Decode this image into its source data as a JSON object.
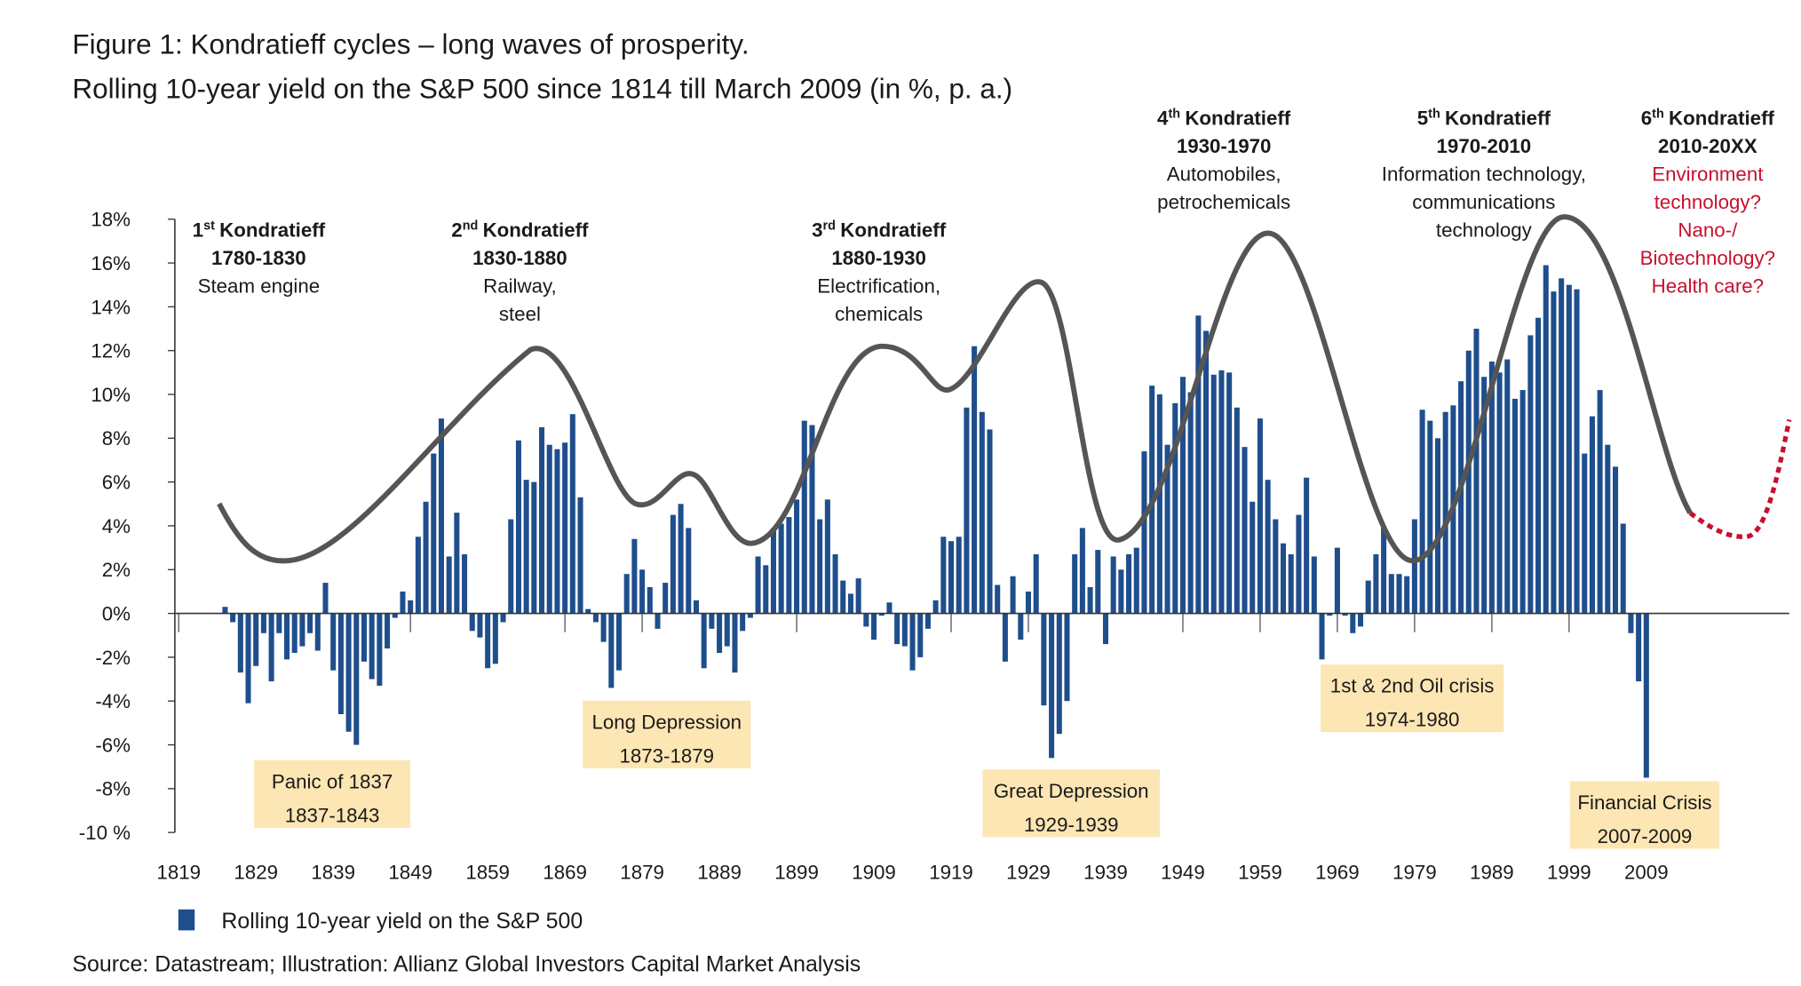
{
  "chart_data": {
    "type": "bar",
    "title": "Figure 1: Kondratieff cycles – long waves of prosperity.",
    "subtitle": "Rolling 10-year yield on the S&P 500 since 1814 till March 2009 (in %, p. a.)",
    "source": "Source: Datastream; Illustration: Allianz Global Investors Capital Market Analysis",
    "xlim": [
      1818.5,
      2027.5
    ],
    "xticks": [
      1819,
      1829,
      1839,
      1849,
      1859,
      1869,
      1879,
      1889,
      1899,
      1909,
      1919,
      1929,
      1939,
      1949,
      1959,
      1969,
      1979,
      1989,
      1999,
      2009
    ],
    "ylim": [
      -10,
      18
    ],
    "yticks": [
      {
        "value": -10,
        "label": "-10 %"
      },
      {
        "value": -8,
        "label": "-8%"
      },
      {
        "value": -6,
        "label": "-6%"
      },
      {
        "value": -4,
        "label": "-4%"
      },
      {
        "value": -2,
        "label": "-2%"
      },
      {
        "value": 0,
        "label": "0%"
      },
      {
        "value": 2,
        "label": "2%"
      },
      {
        "value": 4,
        "label": "4%"
      },
      {
        "value": 6,
        "label": "6%"
      },
      {
        "value": 8,
        "label": "8%"
      },
      {
        "value": 10,
        "label": "10%"
      },
      {
        "value": 12,
        "label": "12%"
      },
      {
        "value": 14,
        "label": "14%"
      },
      {
        "value": 16,
        "label": "16%"
      },
      {
        "value": 18,
        "label": "18%"
      }
    ],
    "x": [
      1825,
      1826,
      1827,
      1828,
      1829,
      1830,
      1831,
      1832,
      1833,
      1834,
      1835,
      1836,
      1837,
      1838,
      1839,
      1840,
      1841,
      1842,
      1843,
      1844,
      1845,
      1846,
      1847,
      1848,
      1849,
      1850,
      1851,
      1852,
      1853,
      1854,
      1855,
      1856,
      1857,
      1858,
      1859,
      1860,
      1861,
      1862,
      1863,
      1864,
      1865,
      1866,
      1867,
      1868,
      1869,
      1870,
      1871,
      1872,
      1873,
      1874,
      1875,
      1876,
      1877,
      1878,
      1879,
      1880,
      1881,
      1882,
      1883,
      1884,
      1885,
      1886,
      1887,
      1888,
      1889,
      1890,
      1891,
      1892,
      1893,
      1894,
      1895,
      1896,
      1897,
      1898,
      1899,
      1900,
      1901,
      1902,
      1903,
      1904,
      1905,
      1906,
      1907,
      1908,
      1909,
      1910,
      1911,
      1912,
      1913,
      1914,
      1915,
      1916,
      1917,
      1918,
      1919,
      1920,
      1921,
      1922,
      1923,
      1924,
      1925,
      1926,
      1927,
      1928,
      1929,
      1930,
      1931,
      1932,
      1933,
      1934,
      1935,
      1936,
      1937,
      1938,
      1939,
      1940,
      1941,
      1942,
      1943,
      1944,
      1945,
      1946,
      1947,
      1948,
      1949,
      1950,
      1951,
      1952,
      1953,
      1954,
      1955,
      1956,
      1957,
      1958,
      1959,
      1960,
      1961,
      1962,
      1963,
      1964,
      1965,
      1966,
      1967,
      1968,
      1969,
      1970,
      1971,
      1972,
      1973,
      1974,
      1975,
      1976,
      1977,
      1978,
      1979,
      1980,
      1981,
      1982,
      1983,
      1984,
      1985,
      1986,
      1987,
      1988,
      1989,
      1990,
      1991,
      1992,
      1993,
      1994,
      1995,
      1996,
      1997,
      1998,
      1999,
      2000,
      2001,
      2002,
      2003,
      2004,
      2005,
      2006,
      2007,
      2008,
      2009
    ],
    "series": [
      {
        "name": "Rolling 10-year yield on the S&P 500",
        "color": "#1f4e8c",
        "values": [
          0.3,
          -0.4,
          -2.7,
          -4.1,
          -2.4,
          -0.9,
          -3.1,
          -0.9,
          -2.1,
          -1.8,
          -1.5,
          -0.9,
          -1.7,
          1.4,
          -2.6,
          -4.6,
          -5.4,
          -6.0,
          -2.2,
          -3.0,
          -3.3,
          -1.6,
          -0.2,
          1.0,
          0.6,
          3.5,
          5.1,
          7.3,
          8.9,
          2.6,
          4.6,
          2.7,
          -0.8,
          -1.1,
          -2.5,
          -2.3,
          -0.4,
          4.3,
          7.9,
          6.1,
          6.0,
          8.5,
          7.7,
          7.5,
          7.8,
          9.1,
          5.3,
          0.2,
          -0.4,
          -1.3,
          -3.4,
          -2.6,
          1.8,
          3.4,
          2.0,
          1.2,
          -0.7,
          1.4,
          4.5,
          5.0,
          3.9,
          0.6,
          -2.5,
          -0.7,
          -1.8,
          -1.5,
          -2.7,
          -0.8,
          -0.2,
          2.6,
          2.2,
          3.9,
          4.1,
          4.4,
          5.2,
          8.8,
          8.6,
          4.3,
          5.2,
          2.7,
          1.5,
          0.9,
          1.6,
          -0.6,
          -1.2,
          -0.1,
          0.5,
          -1.4,
          -1.5,
          -2.6,
          -2.0,
          -0.7,
          0.6,
          3.5,
          3.3,
          3.5,
          9.4,
          12.2,
          9.2,
          8.4,
          1.3,
          -2.2,
          1.7,
          -1.2,
          1.0,
          2.7,
          -4.2,
          -6.6,
          -5.5,
          -4.0,
          2.7,
          3.9,
          1.2,
          2.9,
          -1.4,
          2.6,
          2.0,
          2.7,
          3.0,
          7.4,
          10.4,
          10.0,
          7.7,
          9.6,
          10.8,
          10.1,
          13.6,
          12.9,
          10.9,
          11.1,
          11.0,
          9.4,
          7.6,
          5.1,
          8.9,
          6.1,
          4.3,
          3.2,
          2.7,
          4.5,
          6.2,
          2.6,
          -2.1,
          -0.1,
          3.0,
          -0.1,
          -0.9,
          -0.6,
          1.5,
          2.7,
          3.9,
          1.8,
          1.8,
          1.7,
          4.3,
          9.3,
          8.8,
          8.0,
          9.2,
          9.5,
          10.6,
          12.0,
          13.0,
          10.8,
          11.5,
          11.0,
          11.6,
          9.8,
          10.2,
          12.7,
          13.5,
          15.9,
          14.7,
          15.3,
          15.0,
          14.8,
          7.3,
          9.0,
          10.2,
          7.7,
          6.7,
          4.1,
          -0.9,
          -3.1,
          -7.5
        ]
      }
    ],
    "cycles": [
      {
        "ordinal": "1",
        "suffix": "st",
        "label": "Kondratieff",
        "period": "1780-1830",
        "lines": [
          "Steam engine"
        ],
        "color": "#1a1a1a"
      },
      {
        "ordinal": "2",
        "suffix": "nd",
        "label": "Kondratieff",
        "period": "1830-1880",
        "lines": [
          "Railway,",
          "steel"
        ],
        "color": "#1a1a1a"
      },
      {
        "ordinal": "3",
        "suffix": "rd",
        "label": "Kondratieff",
        "period": "1880-1930",
        "lines": [
          "Electrification,",
          "chemicals"
        ],
        "color": "#1a1a1a"
      },
      {
        "ordinal": "4",
        "suffix": "th",
        "label": "Kondratieff",
        "period": "1930-1970",
        "lines": [
          "Automobiles,",
          "petrochemicals"
        ],
        "color": "#1a1a1a"
      },
      {
        "ordinal": "5",
        "suffix": "th",
        "label": "Kondratieff",
        "period": "1970-2010",
        "lines": [
          "Information technology,",
          "communications",
          "technology"
        ],
        "color": "#1a1a1a"
      },
      {
        "ordinal": "6",
        "suffix": "th",
        "label": "Kondratieff",
        "period": "2010-20XX",
        "lines": [
          "Environment",
          "technology?",
          "Nano-/",
          "Biotechnology?",
          "Health care?"
        ],
        "color": "#c8102e"
      }
    ],
    "crises": [
      {
        "lines": [
          "Panic of 1837",
          "1837-1843"
        ]
      },
      {
        "lines": [
          "Long Depression",
          "1873-1879"
        ]
      },
      {
        "lines": [
          "Great Depression",
          "1929-1939"
        ]
      },
      {
        "lines": [
          "1st & 2nd Oil crisis",
          "1974-1980"
        ]
      },
      {
        "lines": [
          "Financial Crisis",
          "2007-2009"
        ]
      }
    ]
  }
}
